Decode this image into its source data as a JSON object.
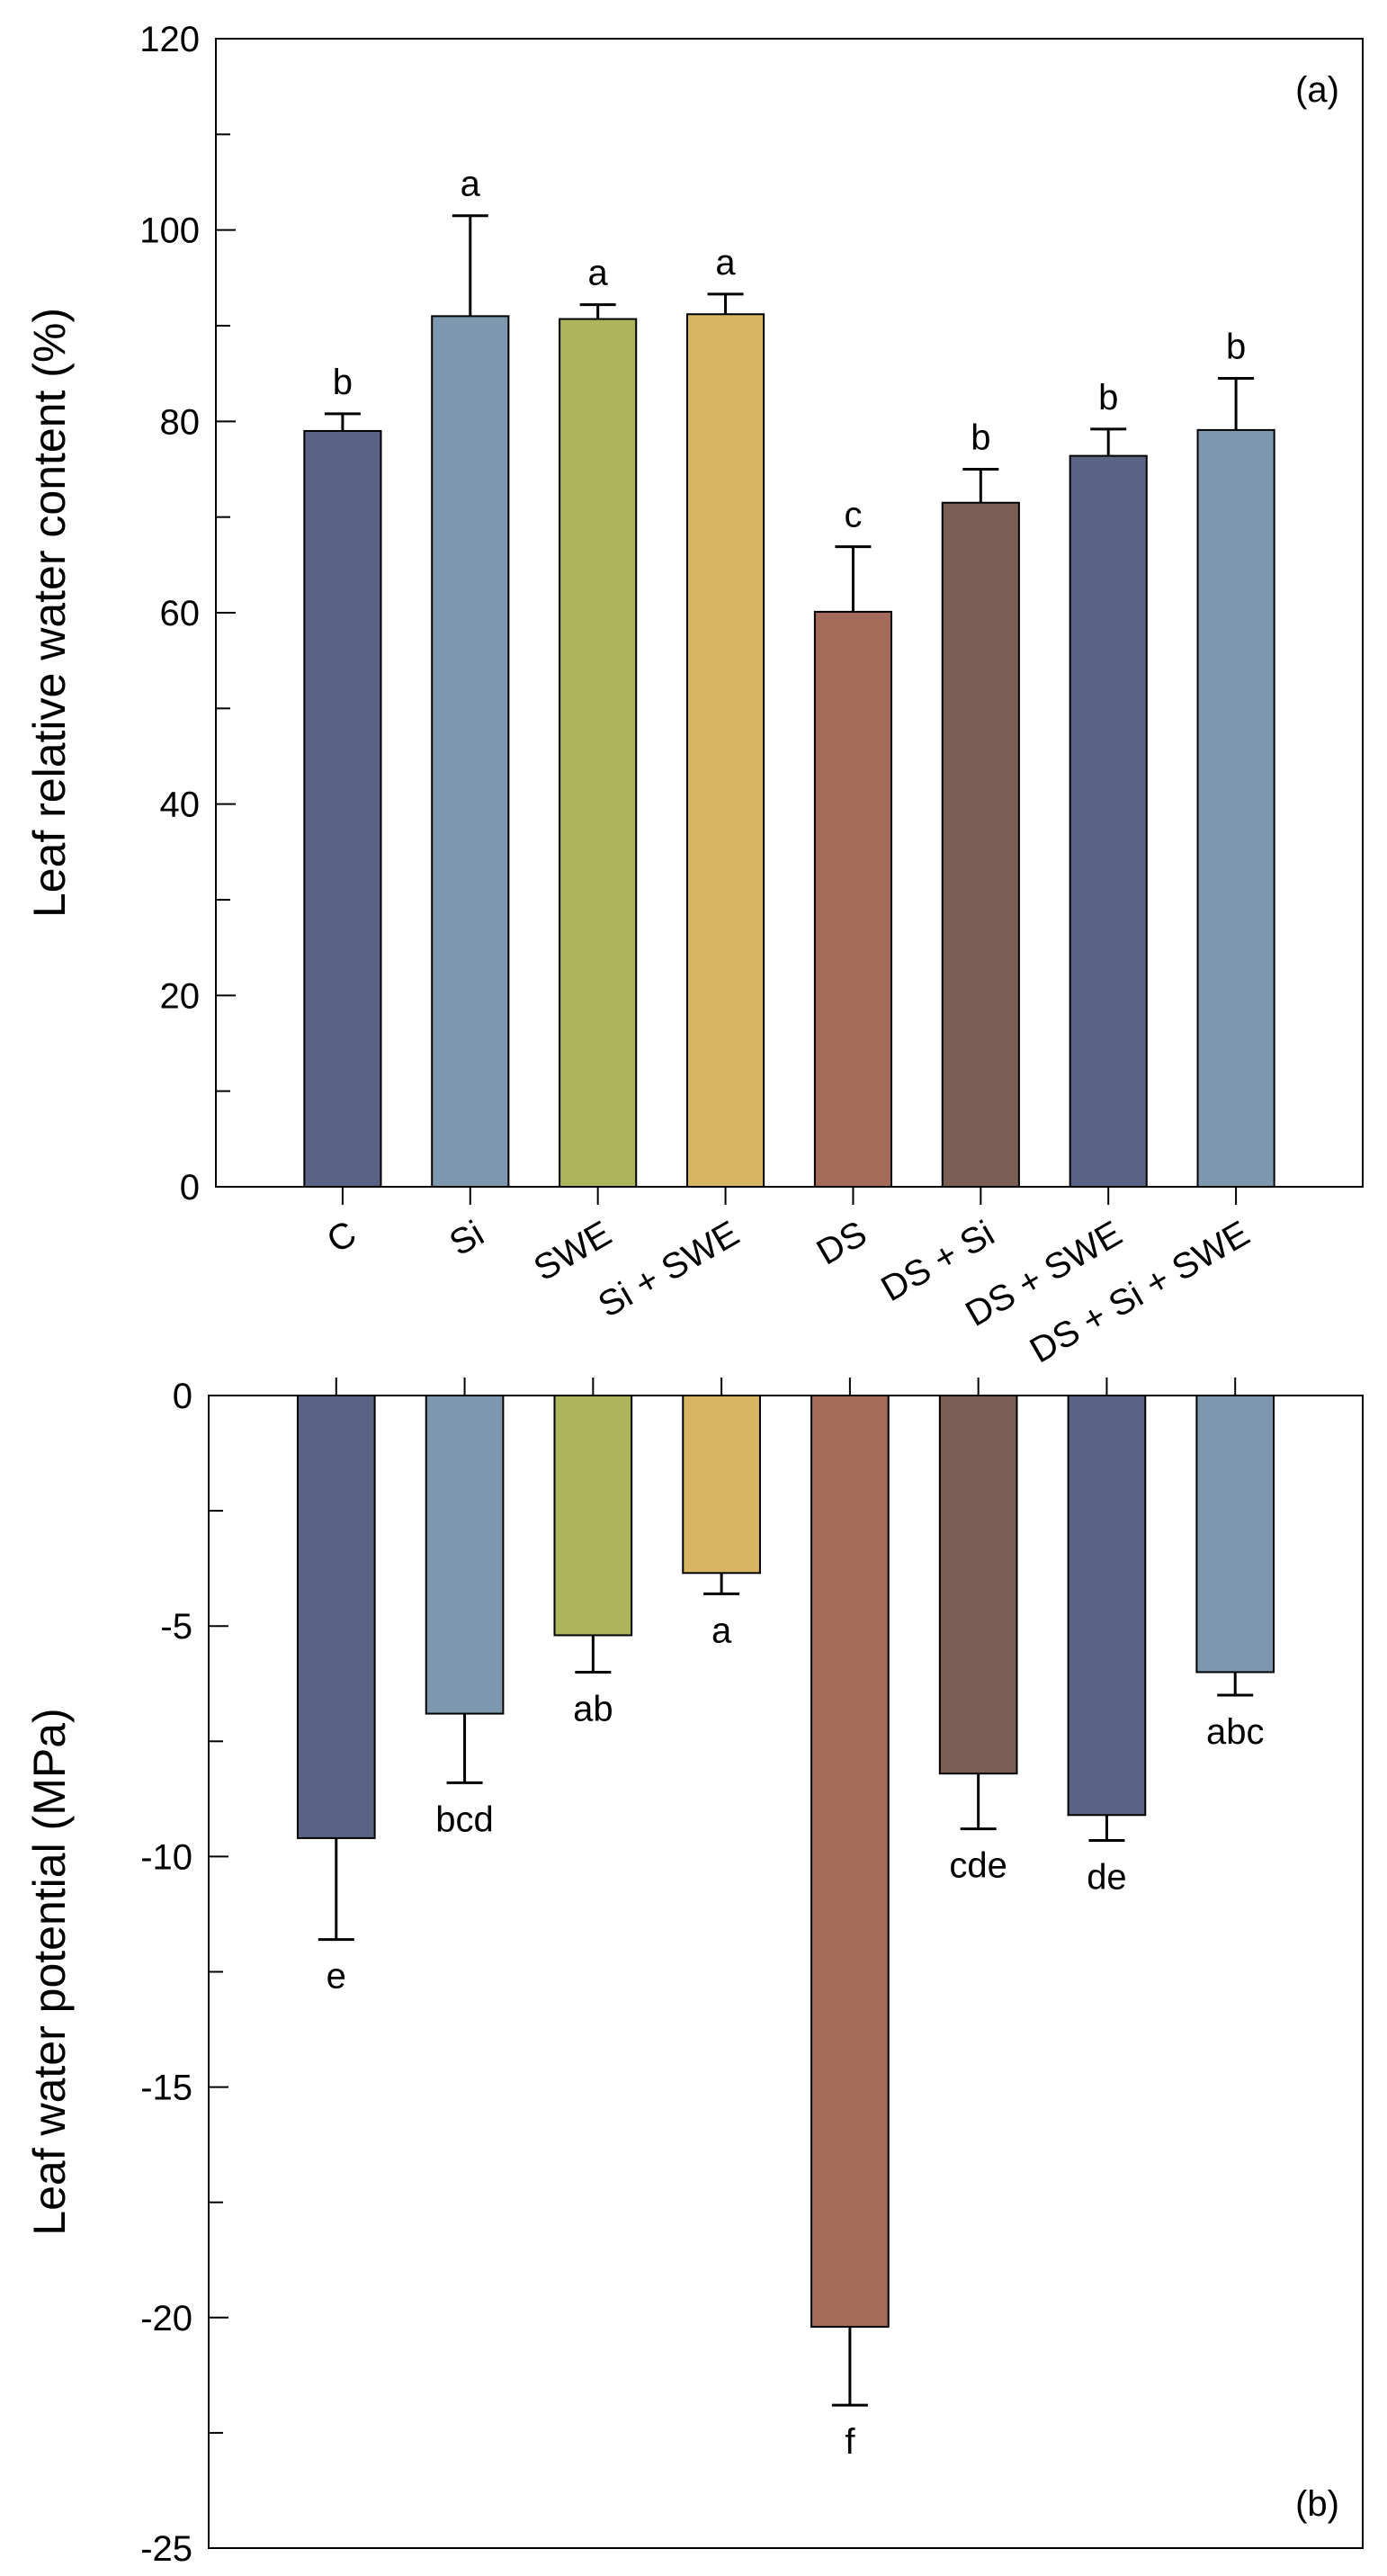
{
  "chart_data": [
    {
      "type": "bar",
      "panel_label": "(a)",
      "ylabel": "Leaf relative water content (%)",
      "xlabel": "",
      "ylim": [
        0,
        120
      ],
      "yticks": [
        0,
        20,
        40,
        60,
        80,
        100,
        120
      ],
      "categories": [
        "C",
        "Si",
        "SWE",
        "Si + SWE",
        "DS",
        "DS + Si",
        "DS + SWE",
        "DS + Si + SWE"
      ],
      "values": [
        79.0,
        91.0,
        90.7,
        91.2,
        60.1,
        71.5,
        76.4,
        79.1
      ],
      "error_upper": [
        80.8,
        101.5,
        92.2,
        93.3,
        66.9,
        75.0,
        79.2,
        84.5
      ],
      "letters": [
        "b",
        "a",
        "a",
        "a",
        "c",
        "b",
        "b",
        "b"
      ],
      "colors": [
        "#5b6385",
        "#7d98ae",
        "#adb55c",
        "#d8b562",
        "#a56b5a",
        "#7a5e53",
        "#5b6385",
        "#7d98ae"
      ],
      "grid": false
    },
    {
      "type": "bar",
      "panel_label": "(b)",
      "ylabel": "Leaf water potential (MPa)",
      "xlabel": "",
      "ylim": [
        -25,
        0
      ],
      "yticks": [
        0,
        -5,
        -10,
        -15,
        -20,
        -25
      ],
      "categories": [
        "C",
        "Si",
        "SWE",
        "Si + SWE",
        "DS",
        "DS + Si",
        "DS + SWE",
        "DS + Si + SWE"
      ],
      "values": [
        -9.6,
        -6.9,
        -5.2,
        -3.85,
        -20.2,
        -8.2,
        -9.1,
        -6.0
      ],
      "error_lower": [
        -11.8,
        -8.4,
        -6.0,
        -4.3,
        -21.9,
        -9.4,
        -9.65,
        -6.5
      ],
      "letters": [
        "e",
        "bcd",
        "ab",
        "a",
        "f",
        "cde",
        "de",
        "abc"
      ],
      "colors": [
        "#5b6385",
        "#7d98ae",
        "#adb55c",
        "#d8b562",
        "#a56b5a",
        "#7a5e53",
        "#5b6385",
        "#7d98ae"
      ],
      "grid": false
    }
  ]
}
